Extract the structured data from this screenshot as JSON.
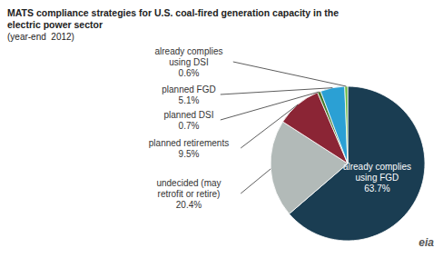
{
  "chart_data": {
    "type": "pie",
    "title": "MATS compliance strategies for U.S. coal-fired generation capacity in the\nelectric power sector",
    "subtitle": "(year-end  2012)",
    "categories": [
      "already complies\nusing FGD",
      "undecided (may\nretrofit or retire)",
      "planned retirements",
      "planned DSI",
      "planned FGD",
      "already complies\nusing DSI"
    ],
    "values": [
      63.7,
      20.4,
      9.5,
      0.7,
      5.1,
      0.6
    ],
    "value_labels": [
      "63.7%",
      "20.4%",
      "9.5%",
      "0.7%",
      "5.1%",
      "0.6%"
    ],
    "colors": [
      "#1a3d52",
      "#b2bab8",
      "#8b2535",
      "#4a7a2e",
      "#2ba0d4",
      "#6ab840"
    ],
    "data_labels": true,
    "annotations": [
      "eia"
    ]
  }
}
